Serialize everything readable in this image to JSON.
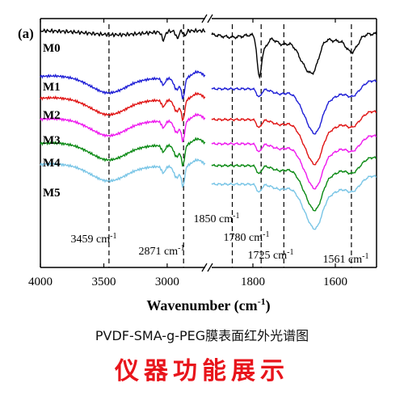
{
  "chart_data": {
    "type": "line",
    "panel_label": "(a)",
    "xlabel": "Wavenumber (cm",
    "xlabel_sup": "-1",
    "xlabel_close": ")",
    "x_reversed": true,
    "x_break_ranges": [
      [
        4000,
        2700
      ],
      [
        1900,
        1500
      ]
    ],
    "xticks_left": [
      4000,
      3500,
      3000
    ],
    "xticks_right": [
      1800,
      1600
    ],
    "y_ticks_shown": false,
    "series": [
      {
        "name": "M0",
        "color": "#000000"
      },
      {
        "name": "M1",
        "color": "#1f1fd6"
      },
      {
        "name": "M2",
        "color": "#e01414"
      },
      {
        "name": "M3",
        "color": "#ee1aee"
      },
      {
        "name": "M4",
        "color": "#0b8a14"
      },
      {
        "name": "M5",
        "color": "#79c5e6"
      }
    ],
    "reference_lines": [
      {
        "x": 3459,
        "label": "3459 cm",
        "sup": "-1"
      },
      {
        "x": 2871,
        "label": "2871 cm",
        "sup": "-1"
      },
      {
        "x": 1850,
        "label": "1850 cm",
        "sup": "-1"
      },
      {
        "x": 1780,
        "label": "1780 cm",
        "sup": "-1"
      },
      {
        "x": 1725,
        "label": "1725 cm",
        "sup": "-1"
      },
      {
        "x": 1561,
        "label": "1561 cm",
        "sup": "-1"
      }
    ]
  },
  "caption": "PVDF-SMA-g-PEG膜表面红外光谱图",
  "banner": "仪器功能展示"
}
